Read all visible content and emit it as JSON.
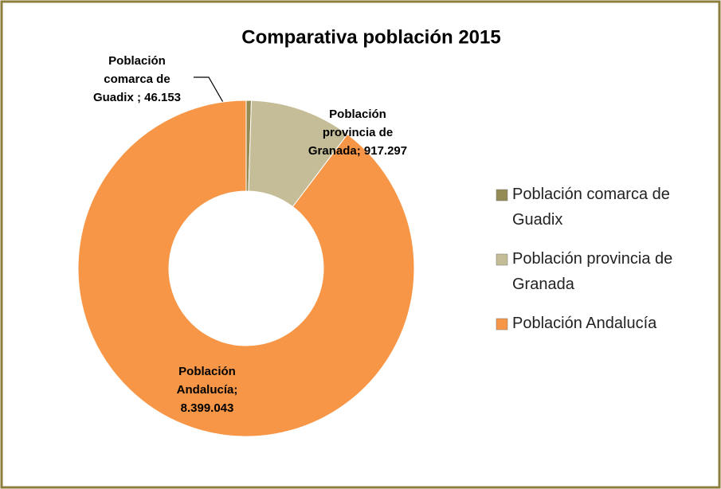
{
  "chart_data": {
    "type": "donut",
    "title": "Comparativa población 2015",
    "categories": [
      "Población comarca de Guadix",
      "Población provincia de Granada",
      "Población Andalucía"
    ],
    "values": [
      46153,
      917297,
      8399043
    ],
    "value_labels": [
      "Población comarca de Guadix ; 46.153",
      "Población provincia de Granada; 917.297",
      "Población Andalucía; 8.399.043"
    ],
    "colors": [
      "#948a54",
      "#c4bd97",
      "#f79646"
    ],
    "legend": "right"
  }
}
